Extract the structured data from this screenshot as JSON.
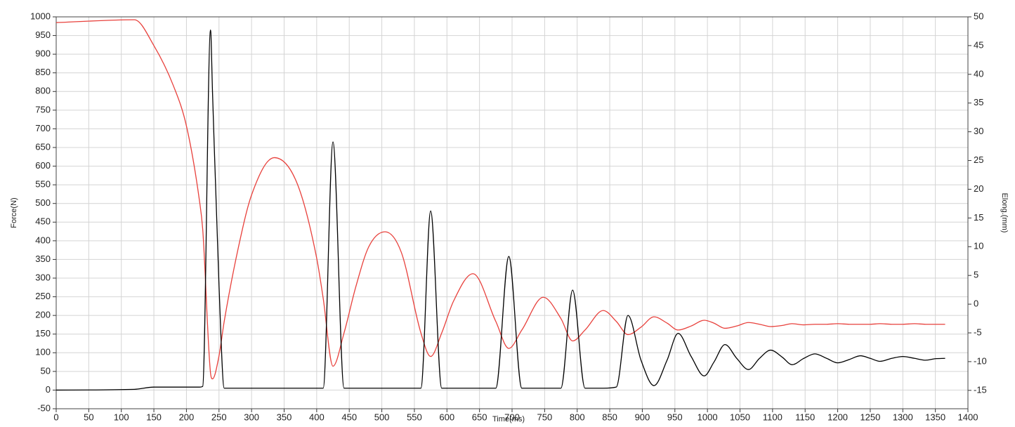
{
  "chart_data": {
    "type": "line",
    "xlabel": "Time(ms)",
    "ylabel": "Force(N)",
    "y2label": "Elong.(mm)",
    "x": [
      0,
      120,
      150,
      180,
      200,
      220,
      225,
      237,
      240,
      250,
      258,
      280,
      300,
      335,
      370,
      400,
      410,
      425,
      442,
      460,
      480,
      505,
      530,
      560,
      575,
      592,
      610,
      640,
      675,
      695,
      715,
      748,
      775,
      793,
      812,
      840,
      860,
      878,
      898,
      918,
      938,
      955,
      975,
      995,
      1010,
      1027,
      1045,
      1063,
      1080,
      1097,
      1115,
      1130,
      1148,
      1165,
      1183,
      1200,
      1218,
      1235,
      1250,
      1265,
      1283,
      1300,
      1318,
      1335,
      1350,
      1365
    ],
    "series": [
      {
        "color": "#000000",
        "axis": "y",
        "values": [
          0,
          2,
          8,
          8,
          8,
          8,
          10,
          965,
          800,
          280,
          5,
          5,
          5,
          5,
          5,
          5,
          5,
          665,
          5,
          5,
          5,
          5,
          5,
          5,
          480,
          5,
          5,
          5,
          5,
          358,
          5,
          5,
          5,
          268,
          5,
          5,
          8,
          200,
          80,
          12,
          80,
          152,
          90,
          38,
          75,
          122,
          85,
          55,
          85,
          107,
          88,
          68,
          85,
          97,
          85,
          73,
          82,
          92,
          85,
          77,
          85,
          90,
          85,
          80,
          84,
          85
        ]
      },
      {
        "color": "#e8413c",
        "axis": "y2",
        "values": [
          49,
          49.5,
          45,
          38,
          31,
          18,
          13,
          -12,
          -13,
          -9,
          -3,
          10,
          19,
          25.5,
          21,
          8,
          1,
          -10.8,
          -5,
          3,
          10,
          12.6,
          9,
          -5,
          -9.1,
          -5,
          0.5,
          5.3,
          -3,
          -7.7,
          -4.5,
          1.2,
          -2.5,
          -6.4,
          -4.5,
          -1.1,
          -3,
          -5.3,
          -4,
          -2.2,
          -3.3,
          -4.5,
          -3.8,
          -2.8,
          -3.3,
          -4.2,
          -3.8,
          -3.2,
          -3.5,
          -3.9,
          -3.7,
          -3.4,
          -3.6,
          -3.5,
          -3.5,
          -3.4,
          -3.5,
          -3.5,
          -3.5,
          -3.4,
          -3.5,
          -3.5,
          -3.4,
          -3.5,
          -3.5,
          -3.5
        ]
      }
    ],
    "xlim": [
      0,
      1400
    ],
    "xticks": [
      0,
      50,
      100,
      150,
      200,
      250,
      300,
      350,
      400,
      450,
      500,
      550,
      600,
      650,
      700,
      750,
      800,
      850,
      900,
      950,
      1000,
      1050,
      1100,
      1150,
      1200,
      1250,
      1300,
      1350,
      1400
    ],
    "ylim": [
      -50,
      1000
    ],
    "yticks": [
      -50,
      0,
      50,
      100,
      150,
      200,
      250,
      300,
      350,
      400,
      450,
      500,
      550,
      600,
      650,
      700,
      750,
      800,
      850,
      900,
      950,
      1000
    ],
    "y2lim": [
      -18.2,
      50
    ],
    "y2ticks": [
      -15,
      -10,
      -5,
      0,
      5,
      10,
      15,
      20,
      25,
      30,
      35,
      40,
      45,
      50
    ],
    "grid": true
  }
}
